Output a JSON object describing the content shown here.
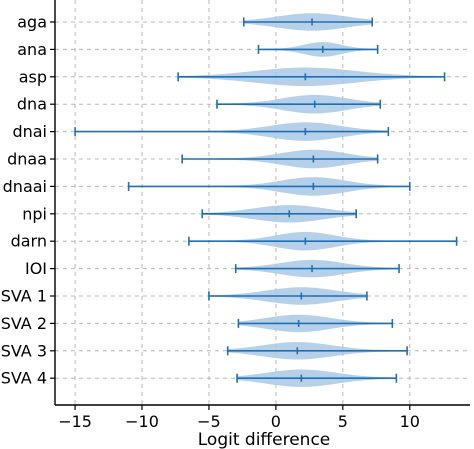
{
  "chart_data": {
    "type": "violin",
    "title": "",
    "xlabel": "Logit difference",
    "ylabel": "",
    "xlim": [
      -16.5,
      14.5
    ],
    "xticks": [
      -15,
      -10,
      -5,
      0,
      5,
      10
    ],
    "xtick_labels": [
      "−15",
      "−10",
      "−5",
      "0",
      "5",
      "10"
    ],
    "grid": "dashed",
    "colors": {
      "fill": "#a8c8e4",
      "line": "#1f6fb4",
      "grid": "#b8b8b8"
    },
    "categories": [
      "aga",
      "ana",
      "asp",
      "dna",
      "dnai",
      "dnaa",
      "dnaai",
      "npi",
      "darn",
      "IOI",
      "SVA 1",
      "SVA 2",
      "SVA 3",
      "SVA 4"
    ],
    "series": [
      {
        "min": -2.4,
        "max": 7.2,
        "median": 2.7,
        "spread": 2.6,
        "width": 0.3
      },
      {
        "min": -1.3,
        "max": 7.6,
        "median": 3.5,
        "spread": 1.4,
        "width": 0.25
      },
      {
        "min": -7.3,
        "max": 12.6,
        "median": 2.2,
        "spread": 3.8,
        "width": 0.32
      },
      {
        "min": -4.4,
        "max": 7.8,
        "median": 2.9,
        "spread": 2.4,
        "width": 0.32
      },
      {
        "min": -15.0,
        "max": 8.4,
        "median": 2.2,
        "spread": 2.6,
        "width": 0.32
      },
      {
        "min": -7.0,
        "max": 7.6,
        "median": 2.8,
        "spread": 2.4,
        "width": 0.32
      },
      {
        "min": -11.0,
        "max": 10.0,
        "median": 2.8,
        "spread": 2.4,
        "width": 0.32
      },
      {
        "min": -5.5,
        "max": 6.0,
        "median": 1.0,
        "spread": 2.6,
        "width": 0.3
      },
      {
        "min": -6.5,
        "max": 13.5,
        "median": 2.2,
        "spread": 2.2,
        "width": 0.32
      },
      {
        "min": -3.0,
        "max": 9.2,
        "median": 2.7,
        "spread": 2.4,
        "width": 0.3
      },
      {
        "min": -5.0,
        "max": 6.8,
        "median": 1.9,
        "spread": 2.6,
        "width": 0.3
      },
      {
        "min": -2.8,
        "max": 8.7,
        "median": 1.7,
        "spread": 2.4,
        "width": 0.3
      },
      {
        "min": -3.6,
        "max": 9.8,
        "median": 1.6,
        "spread": 2.6,
        "width": 0.3
      },
      {
        "min": -2.9,
        "max": 9.0,
        "median": 1.9,
        "spread": 2.6,
        "width": 0.3
      }
    ]
  }
}
